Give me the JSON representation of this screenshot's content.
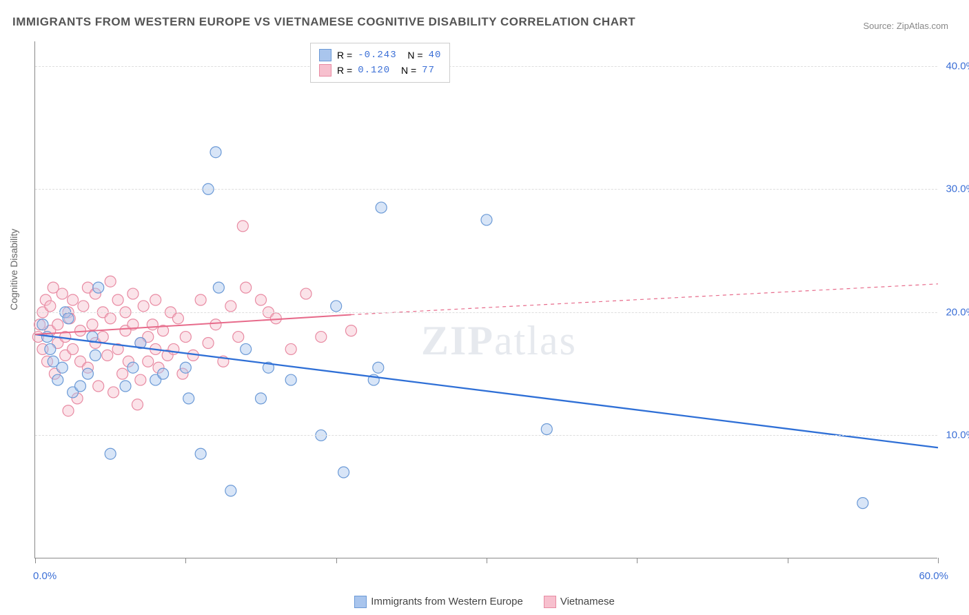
{
  "title": "IMMIGRANTS FROM WESTERN EUROPE VS VIETNAMESE COGNITIVE DISABILITY CORRELATION CHART",
  "source": "Source: ZipAtlas.com",
  "ylabel": "Cognitive Disability",
  "watermark_part1": "ZIP",
  "watermark_part2": "atlas",
  "chart": {
    "type": "scatter-with-regression",
    "xlim": [
      0,
      60
    ],
    "ylim": [
      0,
      42
    ],
    "background_color": "#ffffff",
    "grid_color": "#dddddd",
    "axis_color": "#888888",
    "tick_label_color": "#3b6fd6",
    "yticks": [
      10,
      20,
      30,
      40
    ],
    "ytick_labels": [
      "10.0%",
      "20.0%",
      "30.0%",
      "40.0%"
    ],
    "xticks": [
      0,
      10,
      20,
      30,
      40,
      50,
      60
    ],
    "x_origin_label": "0.0%",
    "x_end_label": "60.0%",
    "point_radius": 8,
    "series": [
      {
        "name": "Immigrants from Western Europe",
        "color_fill": "#a9c5ed",
        "color_stroke": "#6a99d6",
        "R": "-0.243",
        "N": "40",
        "regression": {
          "x1": 0,
          "y1": 18.2,
          "x2": 60,
          "y2": 9.0,
          "color": "#2e6fd6",
          "width": 2.3
        },
        "points": [
          [
            0.5,
            19
          ],
          [
            0.8,
            18
          ],
          [
            1,
            17
          ],
          [
            1.2,
            16
          ],
          [
            1.5,
            14.5
          ],
          [
            1.8,
            15.5
          ],
          [
            2,
            20
          ],
          [
            2.5,
            13.5
          ],
          [
            3,
            14
          ],
          [
            3.5,
            15
          ],
          [
            4,
            16.5
          ],
          [
            4.2,
            22
          ],
          [
            5,
            8.5
          ],
          [
            6,
            14
          ],
          [
            6.5,
            15.5
          ],
          [
            7,
            17.5
          ],
          [
            8,
            14.5
          ],
          [
            8.5,
            15
          ],
          [
            10,
            15.5
          ],
          [
            10.2,
            13
          ],
          [
            11,
            8.5
          ],
          [
            11.5,
            30
          ],
          [
            12,
            33
          ],
          [
            12.2,
            22
          ],
          [
            13,
            5.5
          ],
          [
            14,
            17
          ],
          [
            15,
            13
          ],
          [
            15.5,
            15.5
          ],
          [
            17,
            14.5
          ],
          [
            19,
            10
          ],
          [
            20,
            20.5
          ],
          [
            20.5,
            7
          ],
          [
            22.5,
            14.5
          ],
          [
            22.8,
            15.5
          ],
          [
            23,
            28.5
          ],
          [
            30,
            27.5
          ],
          [
            34,
            10.5
          ],
          [
            55,
            4.5
          ],
          [
            2.2,
            19.5
          ],
          [
            3.8,
            18
          ]
        ]
      },
      {
        "name": "Vietnamese",
        "color_fill": "#f7c0ce",
        "color_stroke": "#e88aa2",
        "R": " 0.120",
        "N": "77",
        "regression": {
          "x1": 0,
          "y1": 18.2,
          "x2": 21,
          "y2": 19.8,
          "color": "#e76a8a",
          "width": 2,
          "dash_ext": {
            "x1": 21,
            "y1": 19.8,
            "x2": 60,
            "y2": 22.3
          }
        },
        "points": [
          [
            0.2,
            18
          ],
          [
            0.3,
            19
          ],
          [
            0.5,
            20
          ],
          [
            0.5,
            17
          ],
          [
            0.7,
            21
          ],
          [
            0.8,
            16
          ],
          [
            1,
            18.5
          ],
          [
            1,
            20.5
          ],
          [
            1.2,
            22
          ],
          [
            1.3,
            15
          ],
          [
            1.5,
            19
          ],
          [
            1.5,
            17.5
          ],
          [
            1.8,
            21.5
          ],
          [
            2,
            16.5
          ],
          [
            2,
            18
          ],
          [
            2.2,
            20
          ],
          [
            2.3,
            19.5
          ],
          [
            2.5,
            17
          ],
          [
            2.5,
            21
          ],
          [
            2.8,
            13
          ],
          [
            3,
            18.5
          ],
          [
            3,
            16
          ],
          [
            3.2,
            20.5
          ],
          [
            3.5,
            22
          ],
          [
            3.5,
            15.5
          ],
          [
            3.8,
            19
          ],
          [
            4,
            17.5
          ],
          [
            4,
            21.5
          ],
          [
            4.2,
            14
          ],
          [
            4.5,
            18
          ],
          [
            4.5,
            20
          ],
          [
            4.8,
            16.5
          ],
          [
            5,
            19.5
          ],
          [
            5,
            22.5
          ],
          [
            5.2,
            13.5
          ],
          [
            5.5,
            17
          ],
          [
            5.5,
            21
          ],
          [
            5.8,
            15
          ],
          [
            6,
            18.5
          ],
          [
            6,
            20
          ],
          [
            6.2,
            16
          ],
          [
            6.5,
            19
          ],
          [
            6.5,
            21.5
          ],
          [
            6.8,
            12.5
          ],
          [
            7,
            17.5
          ],
          [
            7,
            14.5
          ],
          [
            7.2,
            20.5
          ],
          [
            7.5,
            18
          ],
          [
            7.5,
            16
          ],
          [
            7.8,
            19
          ],
          [
            8,
            17
          ],
          [
            8,
            21
          ],
          [
            8.2,
            15.5
          ],
          [
            8.5,
            18.5
          ],
          [
            8.8,
            16.5
          ],
          [
            9,
            20
          ],
          [
            9.2,
            17
          ],
          [
            9.5,
            19.5
          ],
          [
            9.8,
            15
          ],
          [
            10,
            18
          ],
          [
            10.5,
            16.5
          ],
          [
            11,
            21
          ],
          [
            11.5,
            17.5
          ],
          [
            12,
            19
          ],
          [
            12.5,
            16
          ],
          [
            13,
            20.5
          ],
          [
            13.5,
            18
          ],
          [
            13.8,
            27
          ],
          [
            14,
            22
          ],
          [
            15,
            21
          ],
          [
            15.5,
            20
          ],
          [
            16,
            19.5
          ],
          [
            17,
            17
          ],
          [
            18,
            21.5
          ],
          [
            19,
            18
          ],
          [
            21,
            18.5
          ],
          [
            2.2,
            12
          ]
        ]
      }
    ]
  },
  "bottom_legend": {
    "series1_label": "Immigrants from Western Europe",
    "series2_label": "Vietnamese"
  }
}
